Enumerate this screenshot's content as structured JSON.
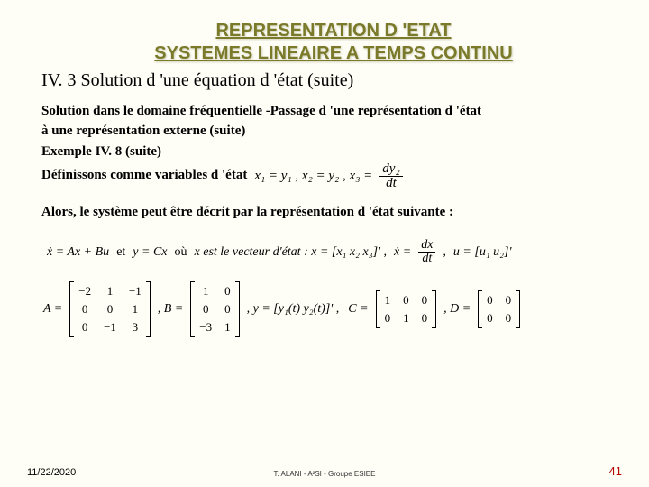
{
  "title": {
    "line1": "REPRESENTATION D 'ETAT",
    "line2": "SYSTEMES LINEAIRE A TEMPS CONTINU"
  },
  "subtitle": "IV. 3 Solution d 'une équation d 'état (suite)",
  "body": {
    "p1a": "Solution dans le domaine fréquentielle -Passage d 'une représentation d 'état",
    "p1b": "à une représentation externe (suite)",
    "p2": "Exemple IV. 8 (suite)",
    "p3": "Définissons comme variables d 'état",
    "vars_eq": "x₁ = y₁ ,   x₂ = y₂ ,   x₃ =",
    "frac_num": "dy₂",
    "frac_den": "dt",
    "p4": "Alors, le système peut être décrit par la représentation d 'état suivante :"
  },
  "eq_line": {
    "xdot": "ẋ = Ax + Bu",
    "et": "et",
    "y": "y = Cx",
    "ou": "où",
    "xvec_label": "x est le vecteur d'état : x = [x₁ x₂ x₃]' ,",
    "xdot_def": "ẋ =",
    "xdot_frac_num": "dx",
    "xdot_frac_den": "dt",
    "comma": ",",
    "u_def": "u = [u₁ u₂]'"
  },
  "matrices": {
    "A_label": "A =",
    "A": [
      [
        "−2",
        "1",
        "−1"
      ],
      [
        "0",
        "0",
        "1"
      ],
      [
        "0",
        "−1",
        "3"
      ]
    ],
    "B_label": ", B =",
    "B": [
      [
        "1",
        "0"
      ],
      [
        "0",
        "0"
      ],
      [
        "−3",
        "1"
      ]
    ],
    "y_label": ", y = [y₁(t)  y₂(t)]' ,",
    "C_label": "C =",
    "C": [
      [
        "1",
        "0",
        "0"
      ],
      [
        "0",
        "1",
        "0"
      ]
    ],
    "D_label": ", D =",
    "D": [
      [
        "0",
        "0"
      ],
      [
        "0",
        "0"
      ]
    ]
  },
  "footer": {
    "date": "11/22/2020",
    "center": "T. ALANI - A²SI - Groupe ESIEE",
    "page": "41"
  },
  "colors": {
    "background": "#fefef6",
    "title": "#7a7a2a",
    "page_number": "#b00000"
  }
}
